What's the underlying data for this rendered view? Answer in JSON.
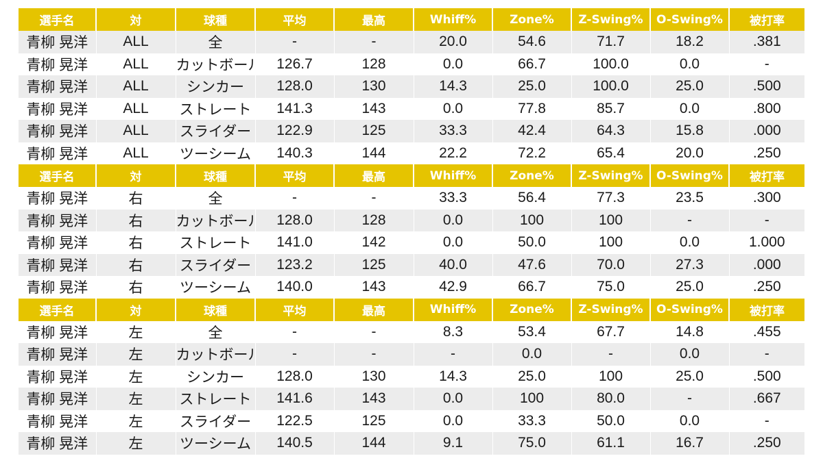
{
  "headers": [
    "選手名",
    "対",
    "球種",
    "平均",
    "最高",
    "Whiff%",
    "Zone%",
    "Z-Swing%",
    "O-Swing%",
    "被打率"
  ],
  "sections": [
    {
      "rows": [
        [
          "青柳 晃洋",
          "ALL",
          "全",
          "-",
          "-",
          "20.0",
          "54.6",
          "71.7",
          "18.2",
          ".381"
        ],
        [
          "青柳 晃洋",
          "ALL",
          "カットボール",
          "126.7",
          "128",
          "0.0",
          "66.7",
          "100.0",
          "0.0",
          "-"
        ],
        [
          "青柳 晃洋",
          "ALL",
          "シンカー",
          "128.0",
          "130",
          "14.3",
          "25.0",
          "100.0",
          "25.0",
          ".500"
        ],
        [
          "青柳 晃洋",
          "ALL",
          "ストレート",
          "141.3",
          "143",
          "0.0",
          "77.8",
          "85.7",
          "0.0",
          ".800"
        ],
        [
          "青柳 晃洋",
          "ALL",
          "スライダー",
          "122.9",
          "125",
          "33.3",
          "42.4",
          "64.3",
          "15.8",
          ".000"
        ],
        [
          "青柳 晃洋",
          "ALL",
          "ツーシーム",
          "140.3",
          "144",
          "22.2",
          "72.2",
          "65.4",
          "20.0",
          ".250"
        ]
      ]
    },
    {
      "rows": [
        [
          "青柳 晃洋",
          "右",
          "全",
          "-",
          "-",
          "33.3",
          "56.4",
          "77.3",
          "23.5",
          ".300"
        ],
        [
          "青柳 晃洋",
          "右",
          "カットボール",
          "128.0",
          "128",
          "0.0",
          "100",
          "100",
          "-",
          "-"
        ],
        [
          "青柳 晃洋",
          "右",
          "ストレート",
          "141.0",
          "142",
          "0.0",
          "50.0",
          "100",
          "0.0",
          "1.000"
        ],
        [
          "青柳 晃洋",
          "右",
          "スライダー",
          "123.2",
          "125",
          "40.0",
          "47.6",
          "70.0",
          "27.3",
          ".000"
        ],
        [
          "青柳 晃洋",
          "右",
          "ツーシーム",
          "140.0",
          "143",
          "42.9",
          "66.7",
          "75.0",
          "25.0",
          ".250"
        ]
      ]
    },
    {
      "rows": [
        [
          "青柳 晃洋",
          "左",
          "全",
          "-",
          "-",
          "8.3",
          "53.4",
          "67.7",
          "14.8",
          ".455"
        ],
        [
          "青柳 晃洋",
          "左",
          "カットボール",
          "-",
          "-",
          "-",
          "0.0",
          "-",
          "0.0",
          "-"
        ],
        [
          "青柳 晃洋",
          "左",
          "シンカー",
          "128.0",
          "130",
          "14.3",
          "25.0",
          "100",
          "25.0",
          ".500"
        ],
        [
          "青柳 晃洋",
          "左",
          "ストレート",
          "141.6",
          "143",
          "0.0",
          "100",
          "80.0",
          "-",
          ".667"
        ],
        [
          "青柳 晃洋",
          "左",
          "スライダー",
          "122.5",
          "125",
          "0.0",
          "33.3",
          "50.0",
          "0.0",
          "-"
        ],
        [
          "青柳 晃洋",
          "左",
          "ツーシーム",
          "140.5",
          "144",
          "9.1",
          "75.0",
          "61.1",
          "16.7",
          ".250"
        ]
      ]
    }
  ],
  "colors": {
    "header_bg": "#e5c400",
    "header_text": "#ffffff",
    "stripe": "#ececec"
  }
}
